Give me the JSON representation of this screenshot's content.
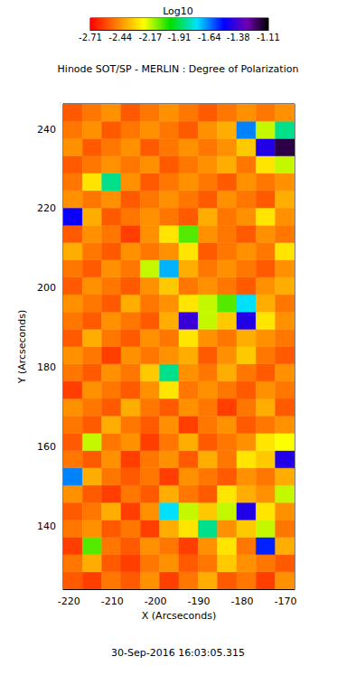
{
  "chart_data": {
    "type": "heatmap",
    "title": "Hinode SOT/SP - MERLIN : Degree of Polarization",
    "x_label": "X (Arcseconds)",
    "y_label": "Y (Arcseconds)",
    "annotation": "30-Sep-2016 16:03:05.315",
    "xlim": [
      -221.3,
      -167.9
    ],
    "ylim": [
      124.1,
      246.4
    ],
    "xticks": [
      -220,
      -210,
      -200,
      -190,
      -180,
      -170
    ],
    "yticks": [
      140,
      160,
      180,
      200,
      220,
      240
    ],
    "x_edges": [
      -221.3,
      -216.85,
      -212.4,
      -207.95,
      -203.5,
      -199.05,
      -194.6,
      -190.15,
      -185.7,
      -181.25,
      -176.8,
      -172.35,
      -167.9
    ],
    "y_edges": [
      124.1,
      128.47,
      132.84,
      137.2,
      141.57,
      145.94,
      150.31,
      154.68,
      159.04,
      163.41,
      167.78,
      172.15,
      176.52,
      180.89,
      185.25,
      189.62,
      193.99,
      198.36,
      202.73,
      207.09,
      211.46,
      215.83,
      220.2,
      224.57,
      228.94,
      233.3,
      237.67,
      242.04,
      246.4
    ],
    "z": [
      [
        -2.55,
        -2.6,
        -2.5,
        -2.55,
        -2.45,
        -2.6,
        -2.5,
        -2.4,
        -2.55,
        -2.5,
        -2.6,
        -2.45
      ],
      [
        -2.5,
        -2.4,
        -2.55,
        -2.6,
        -2.5,
        -2.45,
        -2.55,
        -2.5,
        -2.35,
        -2.45,
        -2.5,
        -2.55
      ],
      [
        -2.6,
        -2.1,
        -2.5,
        -2.55,
        -2.45,
        -2.5,
        -2.6,
        -2.45,
        -2.3,
        -2.5,
        -1.6,
        -2.4
      ],
      [
        -2.5,
        -2.45,
        -2.55,
        -2.5,
        -2.6,
        -2.4,
        -2.3,
        -1.9,
        -2.45,
        -2.35,
        -2.2,
        -2.5
      ],
      [
        -2.55,
        -2.5,
        -2.4,
        -2.6,
        -2.45,
        -1.8,
        -2.2,
        -2.35,
        -2.2,
        -1.5,
        -2.3,
        -2.45
      ],
      [
        -2.45,
        -2.55,
        -2.6,
        -2.5,
        -2.55,
        -2.4,
        -2.5,
        -2.55,
        -2.3,
        -2.4,
        -2.45,
        -2.2
      ],
      [
        -1.7,
        -2.4,
        -2.5,
        -2.55,
        -2.5,
        -2.6,
        -2.45,
        -2.5,
        -2.55,
        -2.45,
        -2.5,
        -2.4
      ],
      [
        -2.5,
        -2.55,
        -2.45,
        -2.6,
        -2.5,
        -2.45,
        -2.55,
        -2.4,
        -2.5,
        -2.3,
        -2.35,
        -1.5
      ],
      [
        -2.55,
        -2.2,
        -2.5,
        -2.45,
        -2.6,
        -2.5,
        -2.4,
        -2.55,
        -2.5,
        -2.45,
        -2.3,
        -2.25
      ],
      [
        -2.5,
        -2.55,
        -2.4,
        -2.5,
        -2.55,
        -2.45,
        -2.6,
        -2.5,
        -2.45,
        -2.55,
        -2.5,
        -2.45
      ],
      [
        -2.45,
        -2.5,
        -2.55,
        -2.4,
        -2.5,
        -2.55,
        -2.45,
        -2.5,
        -2.6,
        -2.5,
        -2.4,
        -2.55
      ],
      [
        -2.6,
        -2.45,
        -2.5,
        -2.55,
        -2.45,
        -2.3,
        -2.5,
        -2.45,
        -2.5,
        -2.55,
        -2.45,
        -2.5
      ],
      [
        -2.5,
        -2.55,
        -2.45,
        -2.5,
        -2.35,
        -1.9,
        -2.45,
        -2.5,
        -2.4,
        -2.5,
        -2.55,
        -2.45
      ],
      [
        -2.45,
        -2.5,
        -2.6,
        -2.45,
        -2.5,
        -2.45,
        -2.4,
        -2.55,
        -2.45,
        -2.35,
        -2.5,
        -2.55
      ],
      [
        -2.55,
        -2.4,
        -2.5,
        -2.55,
        -2.45,
        -2.5,
        -2.3,
        -2.45,
        -2.5,
        -2.4,
        -2.45,
        -2.5
      ],
      [
        -2.5,
        -2.55,
        -2.45,
        -2.5,
        -2.55,
        -2.4,
        -1.45,
        -2.2,
        -2.35,
        -1.5,
        -2.3,
        -2.45
      ],
      [
        -2.45,
        -2.5,
        -2.55,
        -2.4,
        -2.5,
        -2.45,
        -2.3,
        -2.2,
        -2.1,
        -1.8,
        -2.4,
        -2.5
      ],
      [
        -2.55,
        -2.45,
        -2.5,
        -2.55,
        -2.45,
        -2.35,
        -2.5,
        -2.45,
        -2.5,
        -2.55,
        -2.45,
        -2.4
      ],
      [
        -2.5,
        -2.55,
        -2.45,
        -2.5,
        -2.2,
        -1.75,
        -2.4,
        -2.5,
        -2.45,
        -2.5,
        -2.55,
        -2.45
      ],
      [
        -2.4,
        -2.5,
        -2.55,
        -2.45,
        -2.5,
        -2.45,
        -2.3,
        -2.55,
        -2.5,
        -2.45,
        -2.5,
        -2.3
      ],
      [
        -2.55,
        -2.45,
        -2.5,
        -2.6,
        -2.45,
        -2.3,
        -2.1,
        -2.45,
        -2.5,
        -2.55,
        -2.45,
        -2.5
      ],
      [
        -1.55,
        -2.4,
        -2.55,
        -2.5,
        -2.45,
        -2.5,
        -2.55,
        -2.4,
        -2.5,
        -2.45,
        -2.3,
        -2.45
      ],
      [
        -2.45,
        -2.5,
        -2.45,
        -2.55,
        -2.5,
        -2.45,
        -2.5,
        -2.55,
        -2.45,
        -2.5,
        -2.55,
        -2.4
      ],
      [
        -2.5,
        -2.3,
        -1.9,
        -2.45,
        -2.55,
        -2.5,
        -2.45,
        -2.5,
        -2.55,
        -2.45,
        -2.5,
        -2.45
      ],
      [
        -2.55,
        -2.5,
        -2.45,
        -2.5,
        -2.45,
        -2.55,
        -2.5,
        -2.45,
        -2.4,
        -2.5,
        -2.3,
        -2.2
      ],
      [
        -2.45,
        -2.55,
        -2.5,
        -2.45,
        -2.55,
        -2.5,
        -2.45,
        -2.5,
        -2.45,
        -2.35,
        -1.5,
        -1.2
      ],
      [
        -2.5,
        -2.45,
        -2.55,
        -2.5,
        -2.45,
        -2.5,
        -2.55,
        -2.45,
        -2.4,
        -1.7,
        -2.2,
        -1.9
      ],
      [
        -2.55,
        -2.5,
        -2.45,
        -2.55,
        -2.5,
        -2.45,
        -2.5,
        -2.55,
        -2.5,
        -2.45,
        -2.5,
        -2.45
      ]
    ],
    "colorbar": {
      "title": "Log10",
      "range": [
        -2.71,
        -1.11
      ],
      "ticks": [
        -2.71,
        -2.44,
        -2.17,
        -1.91,
        -1.64,
        -1.38,
        -1.11
      ]
    }
  }
}
